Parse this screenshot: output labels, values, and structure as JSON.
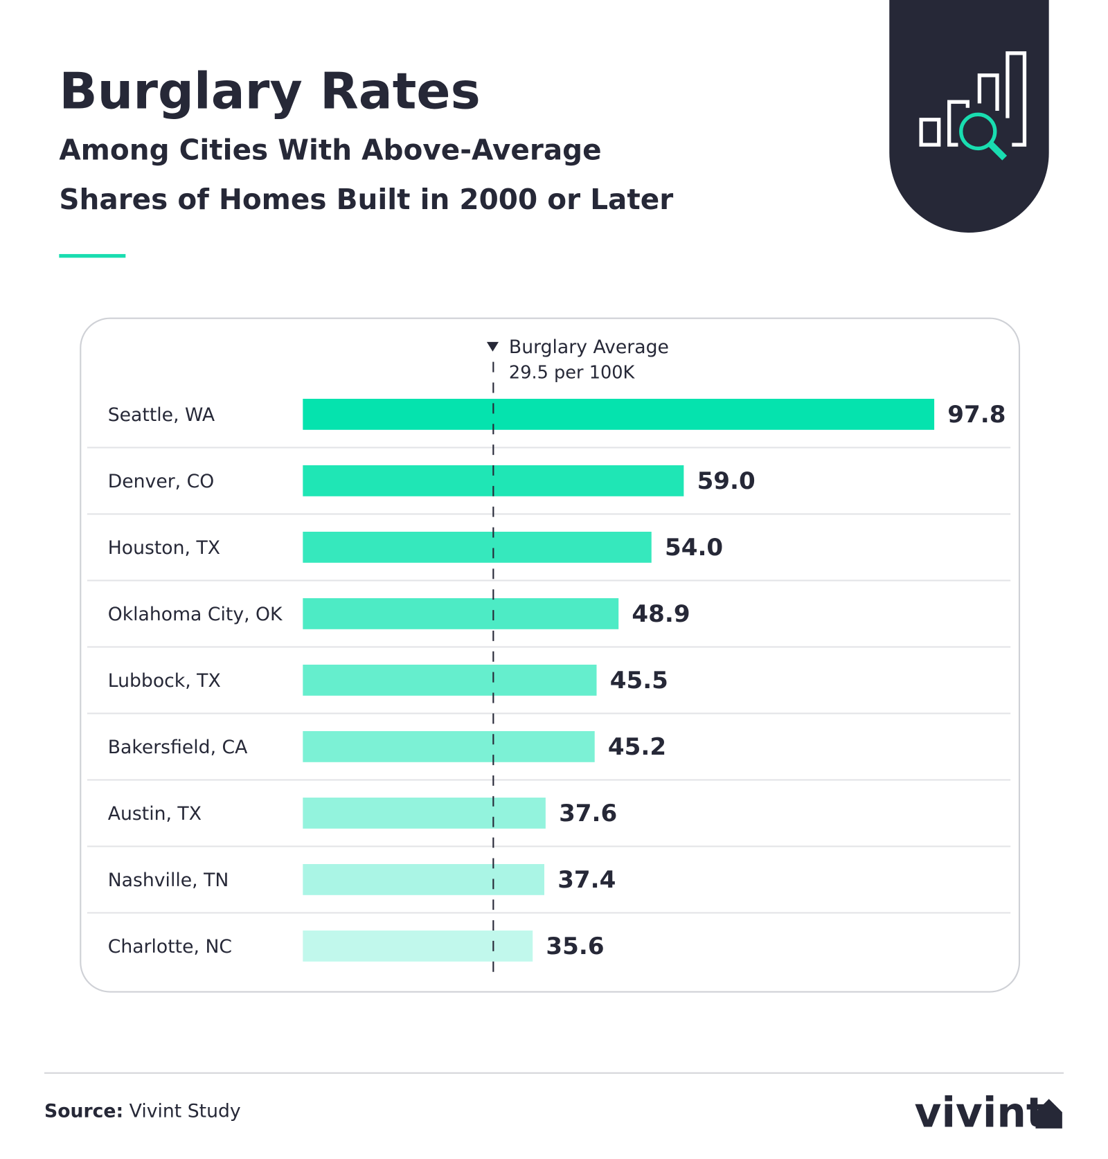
{
  "chart_data": {
    "type": "bar",
    "orientation": "horizontal",
    "title": "Burglary Rates",
    "subtitle": [
      "Among Cities With Above-Average",
      "Shares of Homes Built in 2000 or Later"
    ],
    "categories": [
      "Seattle, WA",
      "Denver, CO",
      "Houston, TX",
      "Oklahoma City, OK",
      "Lubbock, TX",
      "Bakersfield, CA",
      "Austin, TX",
      "Nashville, TN",
      "Charlotte, NC"
    ],
    "values": [
      97.8,
      59.0,
      54.0,
      48.9,
      45.5,
      45.2,
      37.6,
      37.4,
      35.6
    ],
    "value_labels": [
      "97.8",
      "59.0",
      "54.0",
      "48.9",
      "45.5",
      "45.2",
      "37.6",
      "37.4",
      "35.6"
    ],
    "colors": [
      "#05e3ae",
      "#1fe6b5",
      "#36e8bd",
      "#4debc5",
      "#65eecd",
      "#7cf1d5",
      "#93f3dd",
      "#aaf5e5",
      "#c1f8ec"
    ],
    "xlim": [
      0,
      100
    ],
    "average": {
      "label": "Burglary Average",
      "value": 29.5,
      "value_label": "29.5 per 100K"
    },
    "source": {
      "label": "Source:",
      "text": "Vivint Study"
    },
    "brand": "vivint"
  }
}
